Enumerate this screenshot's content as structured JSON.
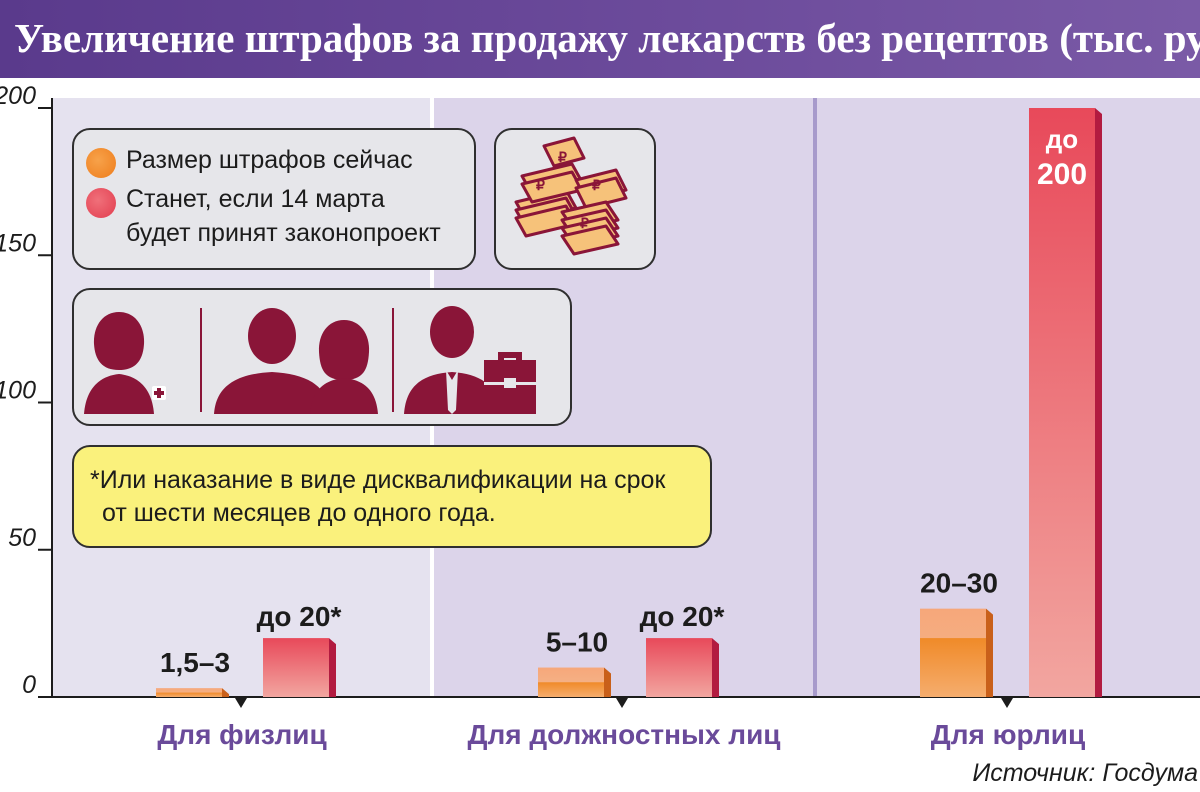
{
  "header": {
    "title": "Увеличение штрафов за продажу лекарств без рецептов (тыс. руб.)"
  },
  "legend": {
    "current_label": "Размер штрафов сейчас",
    "future_label_line1": "Станет, если 14 марта",
    "future_label_line2": "будет принят законопроект"
  },
  "icons": {
    "money": "ruble-banknote-stacks-icon",
    "person_groups": [
      "pharmacist-woman-icon",
      "official-man-icon",
      "official-woman-icon",
      "businessman-briefcase-icon"
    ]
  },
  "note": {
    "line1": "*Или наказание в виде дисквалификации на срок",
    "line2": "от шести месяцев до одного года."
  },
  "source": "Источник: Госдума",
  "colors": {
    "current": "#f0892b",
    "future": "#e8495a",
    "accent_purple": "#6a4a9a",
    "icon_maroon": "#8a1538"
  },
  "chart_data": {
    "type": "bar",
    "categories": [
      "Для физлиц",
      "Для должностных лиц",
      "Для юрлиц"
    ],
    "series": [
      {
        "name": "Размер штрафов сейчас",
        "values": [
          [
            1.5,
            3
          ],
          [
            5,
            10
          ],
          [
            20,
            30
          ]
        ],
        "labels": [
          "1,5–3",
          "5–10",
          "20–30"
        ]
      },
      {
        "name": "Станет, если 14 марта будет принят законопроект",
        "values": [
          20,
          20,
          200
        ],
        "labels": [
          "до 20*",
          "до 20*",
          "до 200"
        ]
      }
    ],
    "ylim": [
      0,
      200
    ],
    "yticks": [
      0,
      50,
      100,
      150,
      200
    ],
    "grid": false
  }
}
